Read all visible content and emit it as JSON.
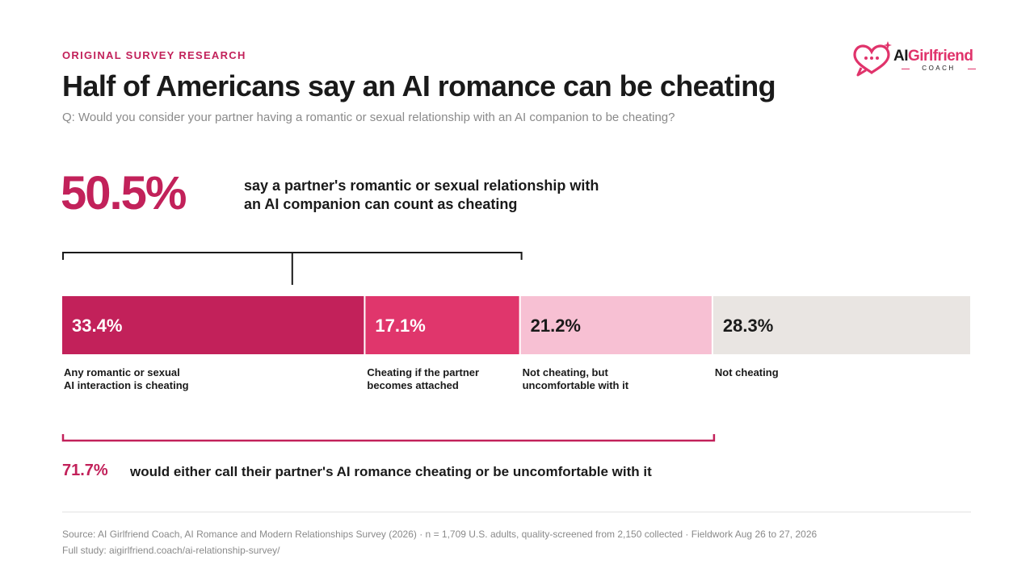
{
  "header": {
    "eyebrow": "ORIGINAL SURVEY RESEARCH",
    "title": "Half of Americans say an AI romance can be cheating",
    "question": "Q: Would you consider your partner having a romantic or sexual relationship with an AI companion to be cheating?"
  },
  "logo": {
    "icon": "heart-chat-bubble-icon",
    "name_part1": "AI",
    "name_part2": "Girlfriend",
    "sub": "COACH"
  },
  "highlight": {
    "value": "50.5%",
    "description": "say a partner's romantic or sexual relationship with an AI companion can count as cheating"
  },
  "chart_data": {
    "type": "bar",
    "orientation": "horizontal-stacked",
    "categories": [
      "Any romantic or sexual AI interaction is cheating",
      "Cheating if the partner becomes attached",
      "Not cheating, but uncomfortable with it",
      "Not cheating"
    ],
    "label_lines": [
      [
        "Any romantic or sexual",
        "AI interaction is cheating"
      ],
      [
        "Cheating if the partner",
        "becomes attached"
      ],
      [
        "Not cheating, but",
        "uncomfortable with it"
      ],
      [
        "Not cheating"
      ]
    ],
    "values": [
      33.4,
      17.1,
      21.2,
      28.3
    ],
    "value_labels": [
      "33.4%",
      "17.1%",
      "21.2%",
      "28.3%"
    ],
    "colors": [
      "#c2215a",
      "#e0366c",
      "#f7c0d3",
      "#e9e5e2"
    ],
    "label_colors": [
      "#ffffff",
      "#ffffff",
      "#1a1a1a",
      "#1a1a1a"
    ],
    "brackets": [
      {
        "from": 0,
        "to": 2,
        "color": "#1a1a1a",
        "position": "above"
      },
      {
        "from": 0,
        "to": 3,
        "color": "#c2215a",
        "position": "below"
      }
    ]
  },
  "bottom": {
    "value": "71.7%",
    "description": "would either call their partner's AI romance cheating or be uncomfortable with it"
  },
  "footer": {
    "source": "Source: AI Girlfriend Coach, AI Romance and Modern Relationships Survey (2026) · n = 1,709 U.S. adults, quality-screened from 2,150 collected · Fieldwork Aug 26 to 27, 2026",
    "study": "Full study: aigirlfriend.coach/ai-relationship-survey/"
  }
}
